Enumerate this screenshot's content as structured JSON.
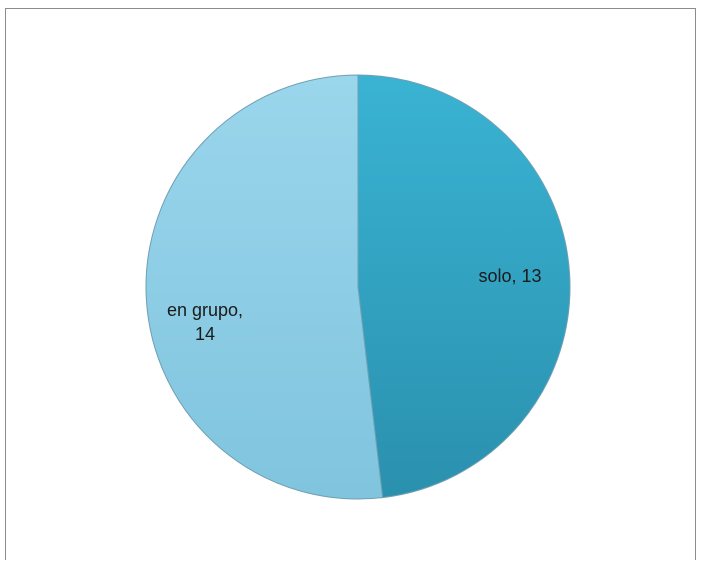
{
  "chart_data": {
    "type": "pie",
    "categories": [
      "solo",
      "en grupo"
    ],
    "values": [
      13,
      14
    ],
    "labels": [
      {
        "lines": [
          "solo, 13"
        ]
      },
      {
        "lines": [
          "en grupo,",
          "14"
        ]
      }
    ],
    "title": "",
    "legend": "none",
    "colors": [
      "#31a6c8",
      "#8fd0e8"
    ]
  }
}
